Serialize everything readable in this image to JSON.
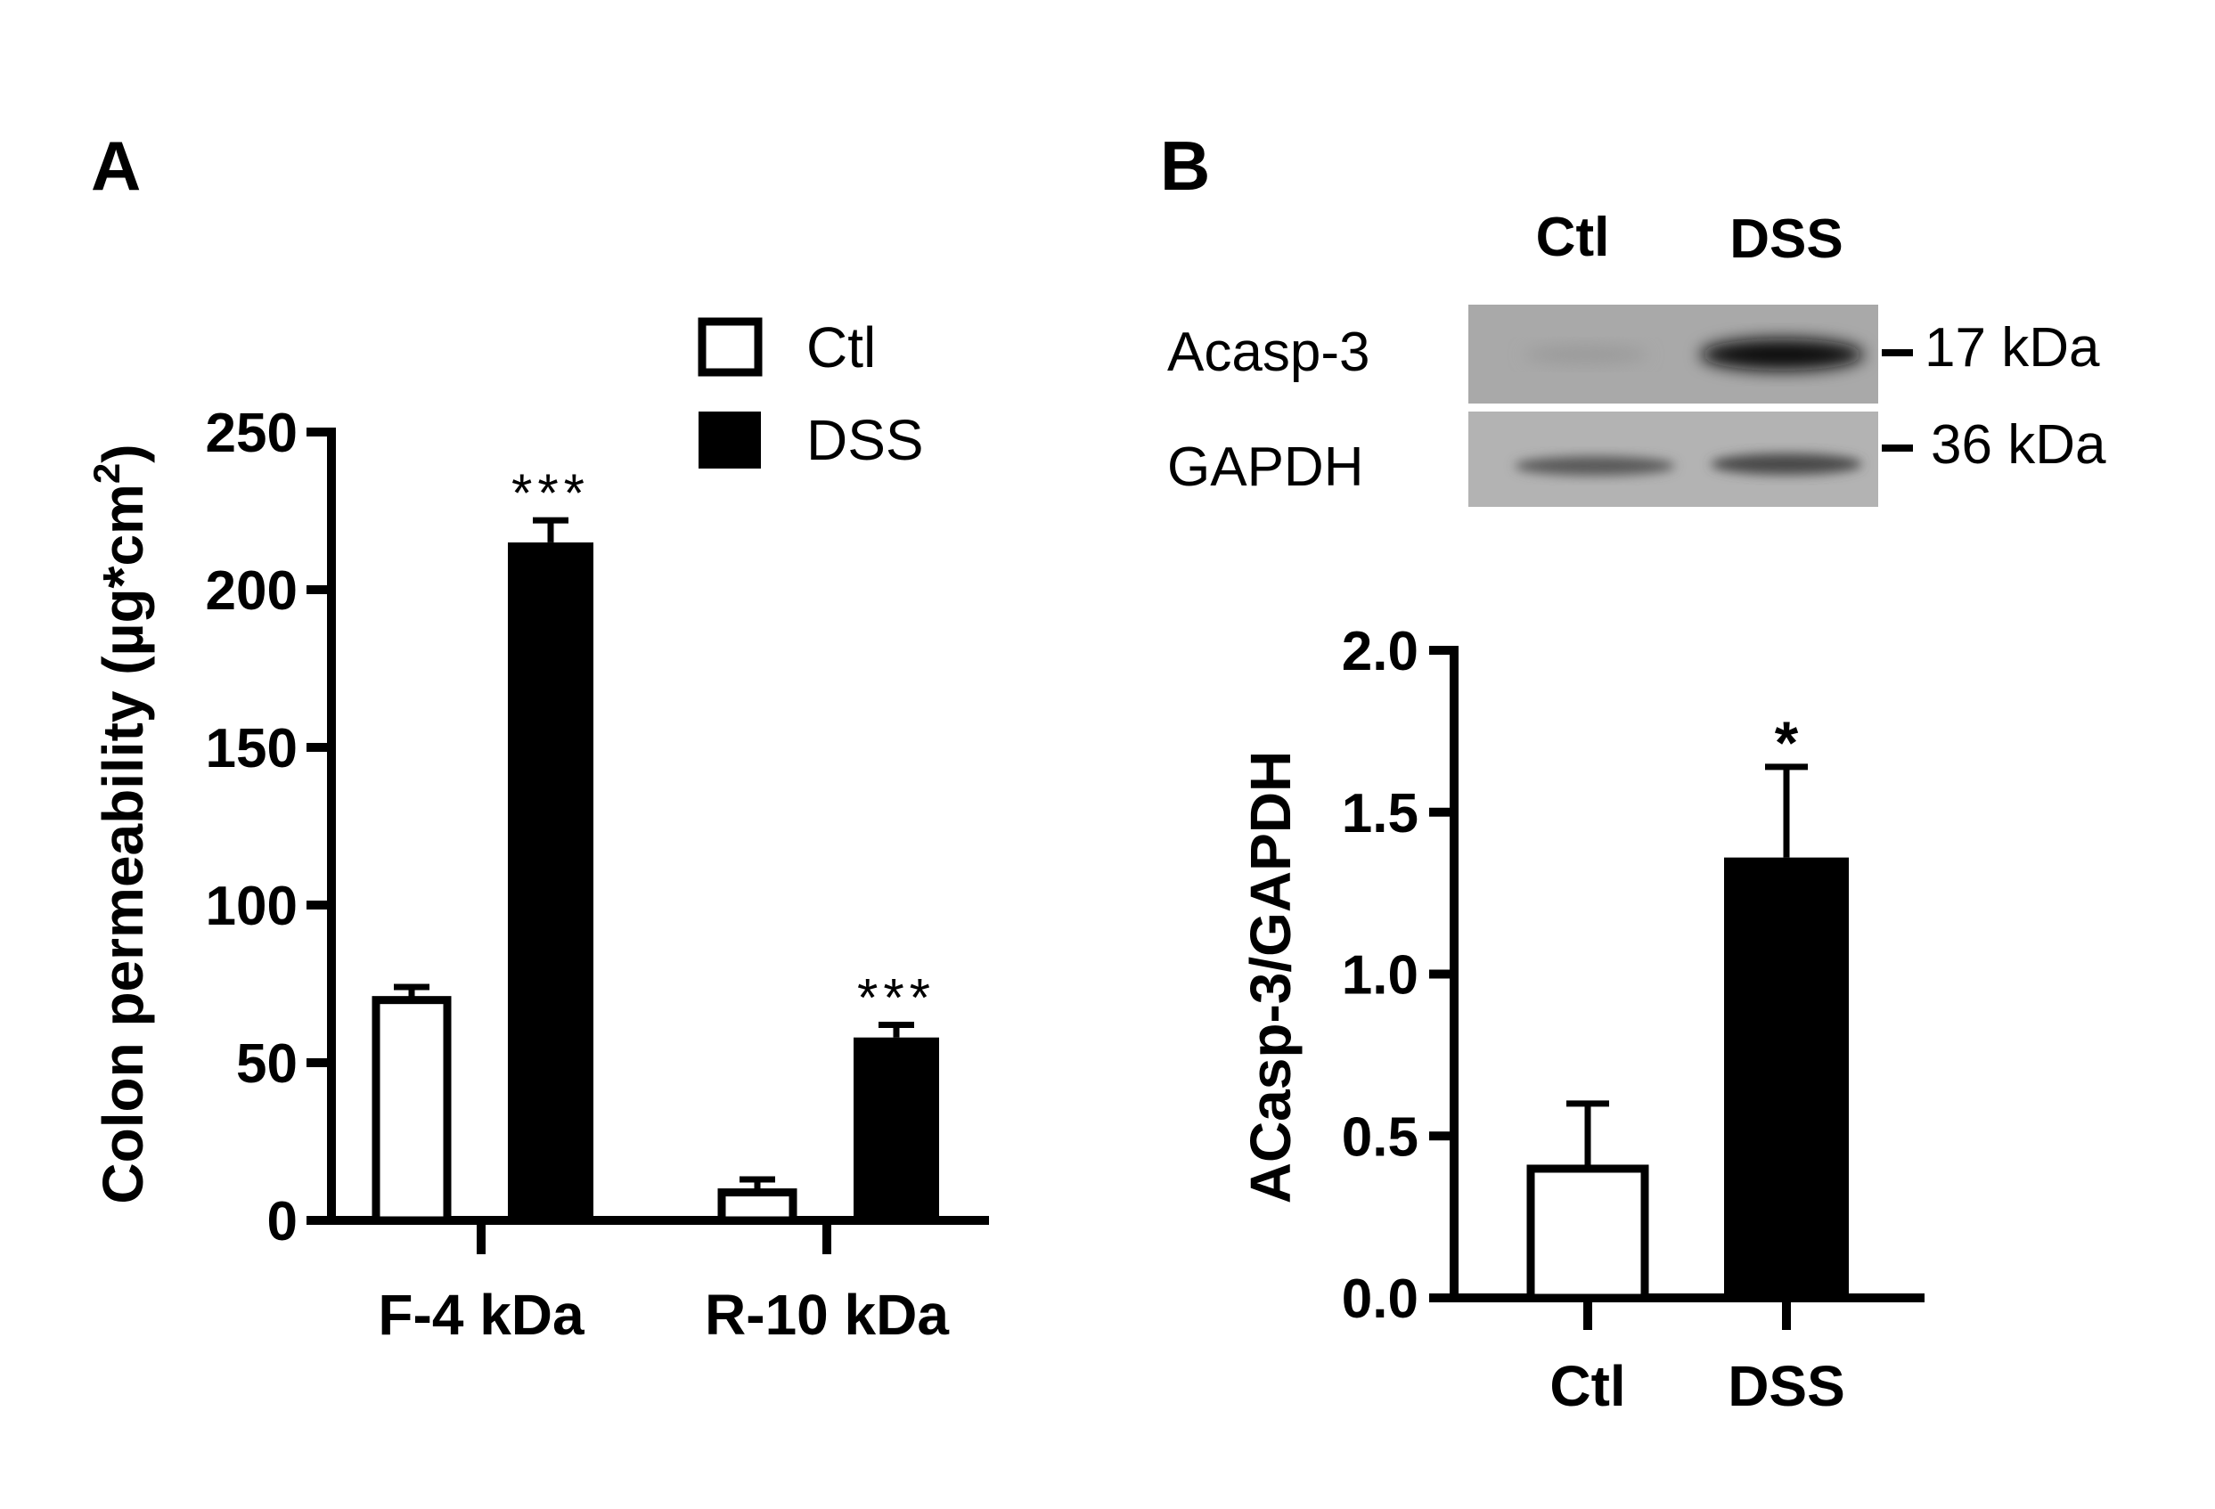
{
  "panels": {
    "a_letter": "A",
    "b_letter": "B"
  },
  "blot": {
    "lane_labels": [
      "Ctl",
      "DSS"
    ],
    "rows": [
      {
        "label": "Acasp-3",
        "marker": "17 kDa"
      },
      {
        "label": "GAPDH",
        "marker": "36 kDa"
      }
    ]
  },
  "chart_data": [
    {
      "type": "bar",
      "ylabel": "Colon permeability (µg*cm",
      "ylabel_sup": "2",
      "ylabel_close": ")",
      "ylim": [
        0,
        250
      ],
      "yticks": [
        0,
        50,
        100,
        150,
        200,
        250
      ],
      "categories": [
        "F-4 kDa",
        "R-10 kDa"
      ],
      "series": [
        {
          "name": "Ctl",
          "fill": "#ffffff",
          "values": [
            71,
            10
          ],
          "errors": [
            3,
            3
          ]
        },
        {
          "name": "DSS",
          "fill": "#000000",
          "values": [
            215,
            58
          ],
          "errors": [
            7,
            4
          ]
        }
      ],
      "significance": [
        [
          "",
          "***"
        ],
        [
          "",
          "***"
        ]
      ],
      "legend": {
        "position": "top-right",
        "entries": [
          "Ctl",
          "DSS"
        ]
      }
    },
    {
      "type": "bar",
      "ylabel": "ACasp-3/GAPDH",
      "ylim": [
        0,
        2.0
      ],
      "yticks": [
        "0.0",
        "0.5",
        "1.0",
        "1.5",
        "2.0"
      ],
      "categories": [
        "Ctl",
        "DSS"
      ],
      "values": [
        0.41,
        1.36
      ],
      "errors": [
        0.19,
        0.28
      ],
      "fills": [
        "#ffffff",
        "#000000"
      ],
      "significance": [
        "",
        "*"
      ]
    }
  ]
}
